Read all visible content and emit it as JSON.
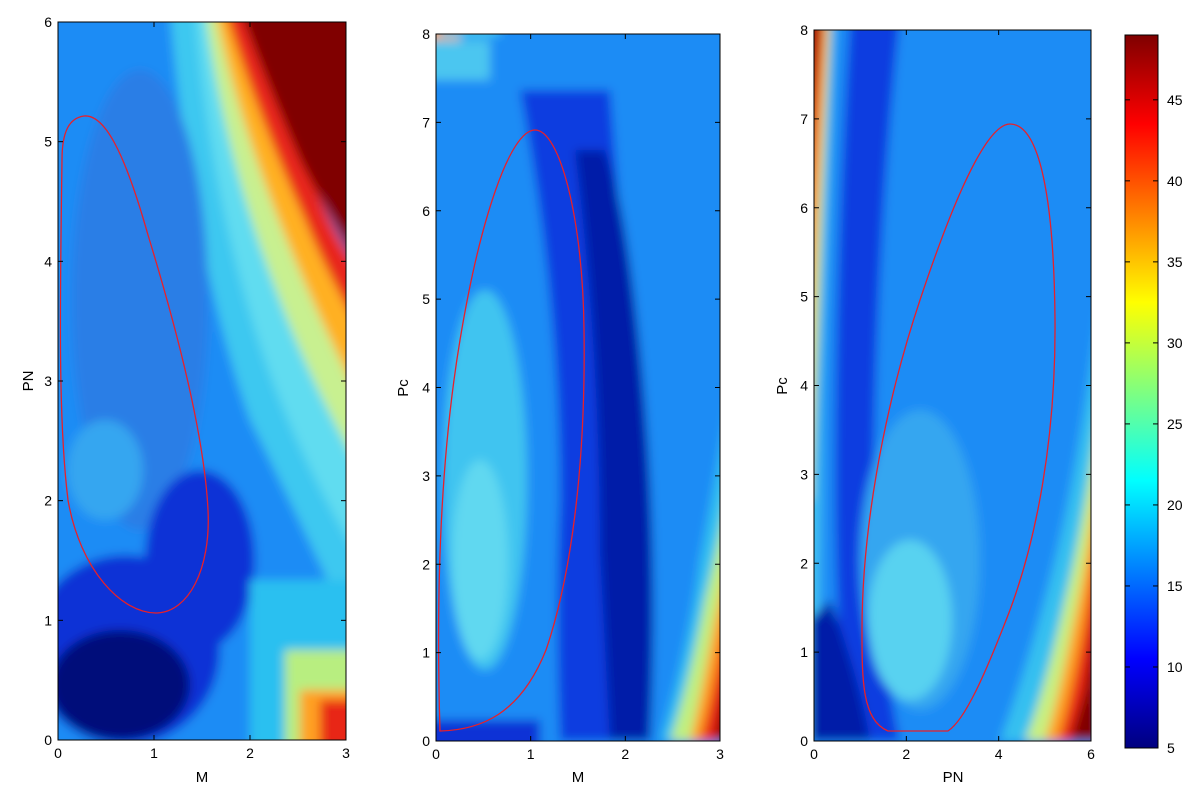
{
  "colors": {
    "background": "#ffffff",
    "contour": "#e8202a",
    "colormap": "jet"
  },
  "chart_data": [
    {
      "type": "heatmap",
      "title": "",
      "xlabel": "M",
      "ylabel": "PN",
      "xlim": [
        0,
        3
      ],
      "ylim": [
        0,
        6
      ],
      "x_ticks": [
        "0",
        "1",
        "2",
        "3"
      ],
      "y_ticks": [
        "0",
        "1",
        "2",
        "3",
        "4",
        "5",
        "6"
      ],
      "grid": false,
      "color_range": [
        5,
        49
      ],
      "contour": {
        "type": "ellipse",
        "center": [
          0.83,
          3.15
        ],
        "extent_x": [
          0.03,
          1.6
        ],
        "extent_y": [
          1.05,
          5.27
        ]
      }
    },
    {
      "type": "heatmap",
      "title": "",
      "xlabel": "M",
      "ylabel": "Pc",
      "xlim": [
        0,
        3
      ],
      "ylim": [
        0,
        8
      ],
      "x_ticks": [
        "0",
        "1",
        "2",
        "3"
      ],
      "y_ticks": [
        "0",
        "1",
        "2",
        "3",
        "4",
        "5",
        "6",
        "7",
        "8"
      ],
      "grid": false,
      "color_range": [
        5,
        49
      ],
      "contour": {
        "type": "ellipse",
        "center": [
          0.75,
          3.5
        ],
        "extent_x": [
          0.02,
          1.55
        ],
        "extent_y": [
          0.08,
          6.93
        ]
      }
    },
    {
      "type": "heatmap",
      "title": "",
      "xlabel": "PN",
      "ylabel": "Pc",
      "xlim": [
        0,
        6
      ],
      "ylim": [
        0,
        8
      ],
      "x_ticks": [
        "0",
        "2",
        "4",
        "6"
      ],
      "y_ticks": [
        "0",
        "1",
        "2",
        "3",
        "4",
        "5",
        "6",
        "7",
        "8"
      ],
      "grid": false,
      "color_range": [
        5,
        49
      ],
      "contour": {
        "type": "ellipse",
        "center": [
          3.2,
          3.5
        ],
        "extent_x": [
          1.05,
          5.2
        ],
        "extent_y": [
          0.09,
          6.93
        ]
      }
    }
  ],
  "colorbar": {
    "min": 5,
    "max": 49,
    "ticks": [
      "5",
      "10",
      "15",
      "20",
      "25",
      "30",
      "35",
      "40",
      "45"
    ]
  }
}
